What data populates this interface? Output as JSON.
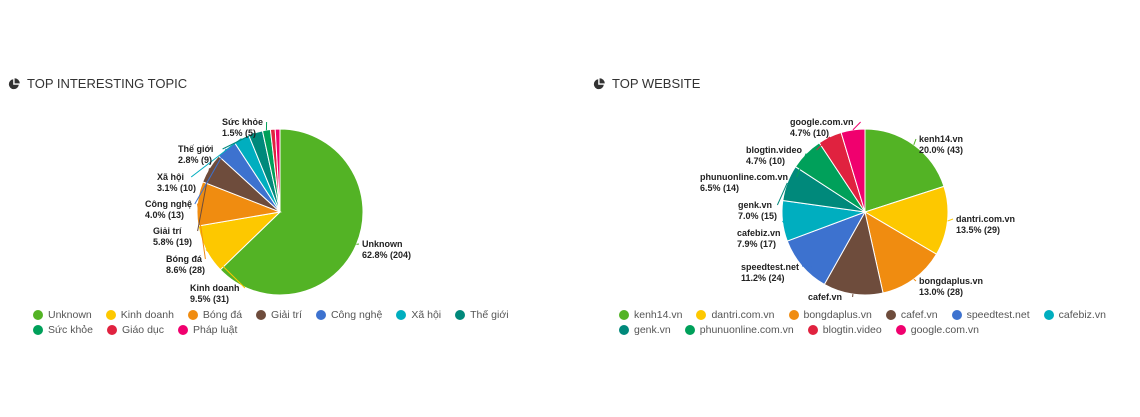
{
  "icon": "pie-chart-icon",
  "chart_data": [
    {
      "type": "pie",
      "title": "TOP INTERESTING TOPIC",
      "categories": [
        "Unknown",
        "Kinh doanh",
        "Bóng đá",
        "Giải trí",
        "Công nghệ",
        "Xã hội",
        "Thế giới",
        "Sức khỏe",
        "Giáo dục",
        "Pháp luật"
      ],
      "values": [
        204,
        31,
        28,
        19,
        13,
        10,
        9,
        5,
        3,
        3
      ],
      "labels": [
        [
          "Unknown",
          "62.8% (204)"
        ],
        [
          "Kinh doanh",
          "9.5% (31)"
        ],
        [
          "Bóng đá",
          "8.6% (28)"
        ],
        [
          "Giải trí",
          "5.8% (19)"
        ],
        [
          "Công nghệ",
          "4.0% (13)"
        ],
        [
          "Xã hội",
          "3.1% (10)"
        ],
        [
          "Thế giới",
          "2.8% (9)"
        ],
        [
          "Sức khỏe",
          "1.5% (5)"
        ],
        null,
        null
      ],
      "colors": [
        "#53b325",
        "#fdc800",
        "#f08c10",
        "#6e4c3c",
        "#3d72cf",
        "#00aebf",
        "#00897b",
        "#00a05a",
        "#e0223f",
        "#f0006e"
      ],
      "legend_position": "bottom"
    },
    {
      "type": "pie",
      "title": "TOP WEBSITE",
      "categories": [
        "kenh14.vn",
        "dantri.com.vn",
        "bongdaplus.vn",
        "cafef.vn",
        "speedtest.net",
        "cafebiz.vn",
        "genk.vn",
        "phunuonline.com.vn",
        "blogtin.video",
        "google.com.vn"
      ],
      "values": [
        43,
        29,
        28,
        25,
        24,
        17,
        15,
        14,
        10,
        10
      ],
      "labels": [
        [
          "kenh14.vn",
          "20.0% (43)"
        ],
        [
          "dantri.com.vn",
          "13.5% (29)"
        ],
        [
          "bongdaplus.vn",
          "13.0% (28)"
        ],
        [
          "cafef.vn",
          ""
        ],
        [
          "speedtest.net",
          "11.2% (24)"
        ],
        [
          "cafebiz.vn",
          "7.9% (17)"
        ],
        [
          "genk.vn",
          "7.0% (15)"
        ],
        [
          "phunuonline.com.vn",
          "6.5% (14)"
        ],
        [
          "blogtin.video",
          "4.7% (10)"
        ],
        [
          "google.com.vn",
          "4.7% (10)"
        ]
      ],
      "colors": [
        "#53b325",
        "#fdc800",
        "#f08c10",
        "#6e4c3c",
        "#3d72cf",
        "#00aebf",
        "#00897b",
        "#00a05a",
        "#e0223f",
        "#f0006e"
      ],
      "legend_position": "bottom"
    }
  ]
}
